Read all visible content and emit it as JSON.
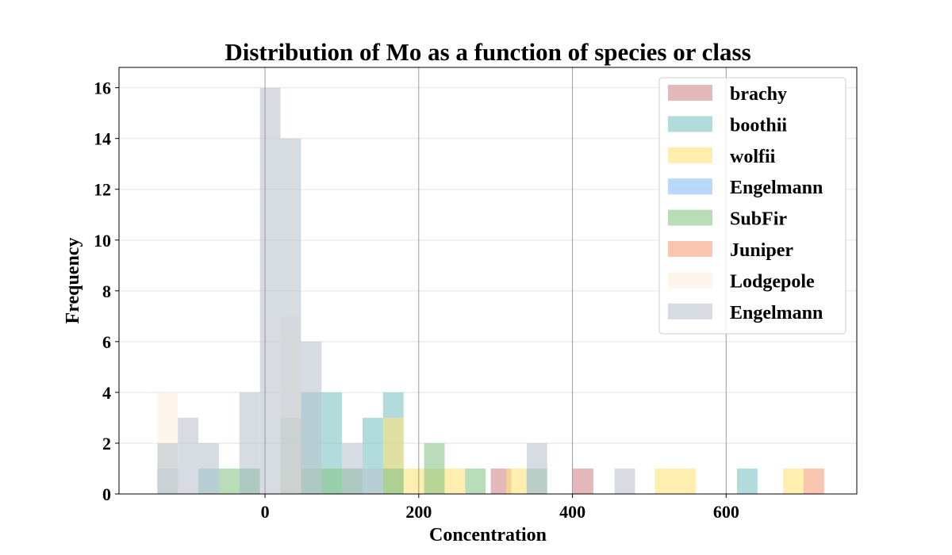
{
  "chart_data": {
    "type": "histogram",
    "title": "Distribution of Mo as a function of species or class",
    "xlabel": "Concentration",
    "ylabel": "Frequency",
    "xlim": [
      -190,
      770
    ],
    "ylim": [
      0,
      16.8
    ],
    "x_ticks": [
      0,
      200,
      400,
      600
    ],
    "y_ticks": [
      0,
      2,
      4,
      6,
      8,
      10,
      12,
      14,
      16
    ],
    "grid": {
      "x": "dark vertical lines",
      "y": "light horizontal lines"
    },
    "bin_width": 26.7,
    "legend_position": "top-right",
    "series": [
      {
        "name": "brachy",
        "color": "#d38a8d",
        "bins": [
          {
            "x0": 293.7,
            "count": 1
          },
          {
            "x0": 400.5,
            "count": 1
          }
        ]
      },
      {
        "name": "boothii",
        "color": "#7ec4c4",
        "bins": [
          {
            "x0": -140.1,
            "count": 1
          },
          {
            "x0": -86.7,
            "count": 1
          },
          {
            "x0": -33.3,
            "count": 1
          },
          {
            "x0": 46.8,
            "count": 4
          },
          {
            "x0": 73.5,
            "count": 4
          },
          {
            "x0": 100.2,
            "count": 1
          },
          {
            "x0": 126.9,
            "count": 3
          },
          {
            "x0": 153.6,
            "count": 4
          },
          {
            "x0": 614.1,
            "count": 1
          }
        ]
      },
      {
        "name": "wolfii",
        "color": "#fde27a",
        "bins": [
          {
            "x0": 153.6,
            "count": 3
          },
          {
            "x0": 180.3,
            "count": 1
          },
          {
            "x0": 207.0,
            "count": 1
          },
          {
            "x0": 233.7,
            "count": 1
          },
          {
            "x0": 313.8,
            "count": 1
          },
          {
            "x0": 507.3,
            "count": 1
          },
          {
            "x0": 534.0,
            "count": 1
          },
          {
            "x0": 674.1,
            "count": 1
          }
        ]
      },
      {
        "name": "Engelmann",
        "color": "#88c0f8",
        "bins": []
      },
      {
        "name": "SubFir",
        "color": "#8bc78b",
        "bins": [
          {
            "x0": -60.0,
            "count": 1
          },
          {
            "x0": -33.3,
            "count": 1
          },
          {
            "x0": 20.1,
            "count": 3
          },
          {
            "x0": 46.8,
            "count": 1
          },
          {
            "x0": 73.5,
            "count": 1
          },
          {
            "x0": 100.2,
            "count": 1
          },
          {
            "x0": 153.6,
            "count": 1
          },
          {
            "x0": 207.0,
            "count": 2
          },
          {
            "x0": 260.4,
            "count": 1
          },
          {
            "x0": 340.5,
            "count": 1
          }
        ]
      },
      {
        "name": "Juniper",
        "color": "#f8a07c",
        "bins": [
          {
            "x0": 700.8,
            "count": 1
          }
        ]
      },
      {
        "name": "Lodgepole",
        "color": "#fdeede",
        "bins": [
          {
            "x0": -140.1,
            "count": 4
          },
          {
            "x0": 20.1,
            "count": 7
          }
        ]
      },
      {
        "name": "Engelmann",
        "color": "#bcc4d0",
        "bins": [
          {
            "x0": -140.1,
            "count": 2
          },
          {
            "x0": -113.4,
            "count": 3
          },
          {
            "x0": -86.7,
            "count": 2
          },
          {
            "x0": -33.3,
            "count": 4
          },
          {
            "x0": -6.6,
            "count": 16
          },
          {
            "x0": 20.1,
            "count": 14
          },
          {
            "x0": 46.8,
            "count": 6
          },
          {
            "x0": 100.2,
            "count": 2
          },
          {
            "x0": 126.9,
            "count": 1
          },
          {
            "x0": 340.5,
            "count": 2
          },
          {
            "x0": 454.8,
            "count": 1
          }
        ]
      }
    ]
  }
}
